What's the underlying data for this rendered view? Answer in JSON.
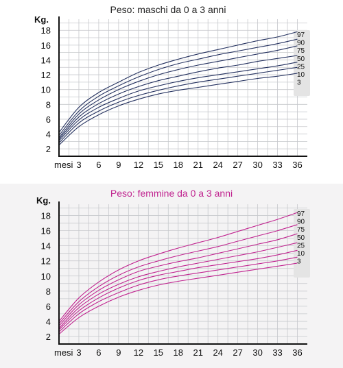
{
  "colors": {
    "boys_line": "#24315f",
    "girls_line": "#c0238f",
    "boys_title": "#222222",
    "girls_title": "#c0238f",
    "grid": "#c6c8cc",
    "axis": "#111111"
  },
  "chart_data": [
    {
      "id": "boys",
      "type": "line",
      "title": "Peso: maschi da 0 a 3 anni",
      "ylabel": "Kg.",
      "xlabel": "mesi",
      "x_ticks": [
        3,
        6,
        9,
        12,
        15,
        18,
        21,
        24,
        27,
        30,
        33,
        36
      ],
      "y_ticks": [
        2,
        4,
        6,
        8,
        10,
        12,
        14,
        16,
        18
      ],
      "xlim": [
        0,
        37.5
      ],
      "ylim": [
        1,
        19.5
      ],
      "grid": true,
      "legend_position": "right",
      "x": [
        0,
        3,
        6,
        9,
        12,
        15,
        18,
        21,
        24,
        27,
        30,
        33,
        36
      ],
      "series": [
        {
          "name": "97",
          "values": [
            4.2,
            7.6,
            9.6,
            11.0,
            12.3,
            13.3,
            14.1,
            14.8,
            15.4,
            16.0,
            16.6,
            17.1,
            17.8
          ]
        },
        {
          "name": "90",
          "values": [
            3.8,
            7.1,
            9.1,
            10.5,
            11.7,
            12.7,
            13.5,
            14.1,
            14.7,
            15.2,
            15.7,
            16.2,
            16.8
          ]
        },
        {
          "name": "75",
          "values": [
            3.5,
            6.7,
            8.6,
            10.0,
            11.1,
            12.0,
            12.7,
            13.3,
            13.8,
            14.3,
            14.8,
            15.3,
            15.9
          ]
        },
        {
          "name": "50",
          "values": [
            3.3,
            6.3,
            8.1,
            9.4,
            10.4,
            11.2,
            11.8,
            12.4,
            12.9,
            13.3,
            13.8,
            14.2,
            14.6
          ]
        },
        {
          "name": "25",
          "values": [
            3.1,
            5.9,
            7.6,
            8.8,
            9.8,
            10.5,
            11.1,
            11.6,
            12.0,
            12.4,
            12.8,
            13.2,
            13.7
          ]
        },
        {
          "name": "10",
          "values": [
            2.8,
            5.5,
            7.1,
            8.3,
            9.2,
            9.9,
            10.5,
            11.0,
            11.4,
            11.8,
            12.2,
            12.6,
            13.0
          ]
        },
        {
          "name": "3",
          "values": [
            2.5,
            5.0,
            6.6,
            7.8,
            8.7,
            9.4,
            9.9,
            10.3,
            10.7,
            11.1,
            11.5,
            11.8,
            12.2
          ]
        }
      ]
    },
    {
      "id": "girls",
      "type": "line",
      "title": "Peso: femmine da 0 a 3 anni",
      "ylabel": "Kg.",
      "xlabel": "mesi",
      "x_ticks": [
        3,
        6,
        9,
        12,
        15,
        18,
        21,
        24,
        27,
        30,
        33,
        36
      ],
      "y_ticks": [
        2,
        4,
        6,
        8,
        10,
        12,
        14,
        16,
        18
      ],
      "xlim": [
        0,
        37.5
      ],
      "ylim": [
        1,
        19.5
      ],
      "grid": true,
      "legend_position": "right",
      "x": [
        0,
        3,
        6,
        9,
        12,
        15,
        18,
        21,
        24,
        27,
        30,
        33,
        36
      ],
      "series": [
        {
          "name": "97",
          "values": [
            4.0,
            7.1,
            9.2,
            10.8,
            12.0,
            12.9,
            13.7,
            14.4,
            15.1,
            15.9,
            16.7,
            17.5,
            18.4
          ]
        },
        {
          "name": "90",
          "values": [
            3.7,
            6.6,
            8.6,
            10.1,
            11.2,
            12.0,
            12.7,
            13.3,
            13.9,
            14.6,
            15.3,
            16.0,
            16.8
          ]
        },
        {
          "name": "75",
          "values": [
            3.4,
            6.2,
            8.1,
            9.5,
            10.6,
            11.3,
            11.9,
            12.4,
            13.0,
            13.6,
            14.2,
            14.8,
            15.6
          ]
        },
        {
          "name": "50",
          "values": [
            3.1,
            5.8,
            7.6,
            8.9,
            9.9,
            10.6,
            11.2,
            11.7,
            12.2,
            12.7,
            13.2,
            13.8,
            14.4
          ]
        },
        {
          "name": "25",
          "values": [
            2.9,
            5.4,
            7.1,
            8.4,
            9.4,
            10.1,
            10.6,
            11.1,
            11.5,
            11.9,
            12.3,
            12.8,
            13.4
          ]
        },
        {
          "name": "10",
          "values": [
            2.6,
            5.0,
            6.6,
            7.8,
            8.8,
            9.5,
            10.0,
            10.4,
            10.8,
            11.2,
            11.6,
            12.0,
            12.5
          ]
        },
        {
          "name": "3",
          "values": [
            2.3,
            4.5,
            6.0,
            7.2,
            8.1,
            8.8,
            9.3,
            9.7,
            10.1,
            10.5,
            10.9,
            11.3,
            11.7
          ]
        }
      ]
    }
  ]
}
